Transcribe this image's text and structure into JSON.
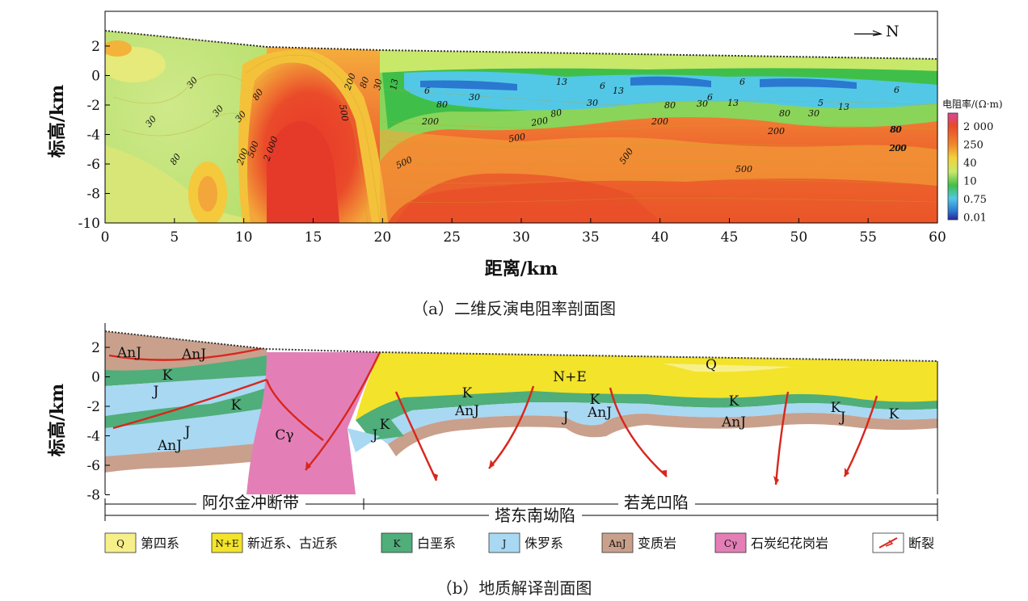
{
  "panel_a": {
    "caption": "（a）二维反演电阻率剖面图",
    "north_label": "N",
    "ylabel": "标高/km",
    "xlabel": "距离/km",
    "x_ticks": [
      "0",
      "5",
      "10",
      "15",
      "20",
      "25",
      "30",
      "35",
      "40",
      "45",
      "50",
      "55",
      "60"
    ],
    "y_ticks": [
      "2",
      "0",
      "-2",
      "-4",
      "-6",
      "-8",
      "-10"
    ],
    "colorbar": {
      "title": "电阻率/(Ω·m)",
      "labels": [
        "2 000",
        "250",
        "40",
        "10",
        "0.75",
        "0.01"
      ],
      "colors": [
        "#d8479a",
        "#e8492a",
        "#f08a2e",
        "#f2d23a",
        "#c8e86a",
        "#3fbf4a",
        "#52c8e6",
        "#2a78d0",
        "#26279a"
      ]
    },
    "contour_labels": [
      "30",
      "30",
      "30",
      "30",
      "80",
      "80",
      "200",
      "500",
      "2 000",
      "500",
      "200",
      "80",
      "30",
      "13",
      "6",
      "80",
      "200",
      "500",
      "13",
      "30",
      "80",
      "200",
      "500",
      "6",
      "13",
      "30",
      "80",
      "200",
      "500",
      "6",
      "13",
      "30",
      "500",
      "80",
      "200",
      "6",
      "5",
      "13",
      "30",
      "80",
      "200",
      "6",
      "200",
      "80"
    ]
  },
  "panel_b": {
    "caption": "（b）地质解译剖面图",
    "ylabel": "标高/km",
    "y_ticks": [
      "2",
      "0",
      "-2",
      "-4",
      "-6",
      "-8"
    ],
    "unit_labels": [
      "AnJ",
      "AnJ",
      "K",
      "J",
      "K",
      "J",
      "AnJ",
      "Cγ",
      "J",
      "K",
      "N+E",
      "K",
      "AnJ",
      "Q",
      "K",
      "AnJ",
      "J",
      "K",
      "AnJ",
      "K",
      "J",
      "K"
    ],
    "zone_labels": {
      "left": "阿尔金冲断带",
      "right": "若羌凹陷",
      "bottom": "塔东南坳陷"
    },
    "legend": [
      {
        "code": "Q",
        "name": "第四系",
        "color": "#f7f08a"
      },
      {
        "code": "N+E",
        "name": "新近系、古近系",
        "color": "#f3e32b"
      },
      {
        "code": "K",
        "name": "白垩系",
        "color": "#4fae7a"
      },
      {
        "code": "J",
        "name": "侏罗系",
        "color": "#a9d8f2"
      },
      {
        "code": "AnJ",
        "name": "变质岩",
        "color": "#c9a08c"
      },
      {
        "code": "Cγ",
        "name": "石炭纪花岗岩",
        "color": "#e37fb6"
      },
      {
        "code": "",
        "name": "断裂",
        "color": "#d9261c"
      }
    ]
  }
}
